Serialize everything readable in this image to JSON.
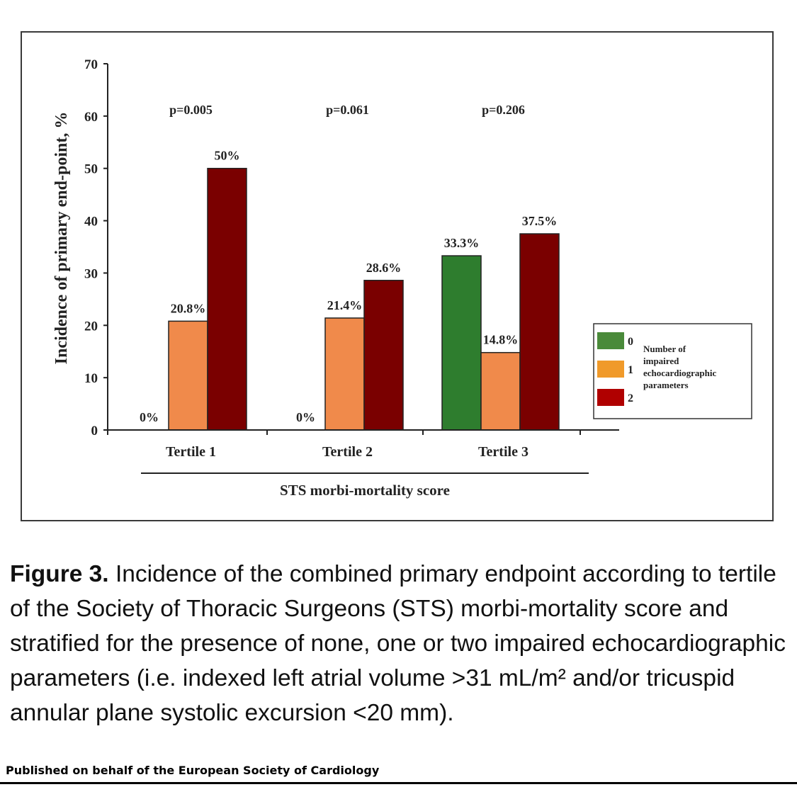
{
  "chart_data": {
    "type": "bar",
    "ylabel": "Incidence of primary end-point, %",
    "xlabel": "STS morbi-mortality score",
    "ylim": [
      0,
      70
    ],
    "yticks": [
      0,
      10,
      20,
      30,
      40,
      50,
      60,
      70
    ],
    "categories": [
      "Tertile 1",
      "Tertile 2",
      "Tertile 3"
    ],
    "p_values": [
      "p=0.005",
      "p=0.061",
      "p=0.206"
    ],
    "series": [
      {
        "name": "0",
        "color": "#2e7d2e",
        "values": [
          0,
          0,
          33.3
        ],
        "labels": [
          "0%",
          "0%",
          "33.3%"
        ]
      },
      {
        "name": "1",
        "color": "#f08a4b",
        "values": [
          20.8,
          21.4,
          14.8
        ],
        "labels": [
          "20.8%",
          "21.4%",
          "14.8%"
        ]
      },
      {
        "name": "2",
        "color": "#7a0000",
        "values": [
          50,
          28.6,
          37.5
        ],
        "labels": [
          "50%",
          "28.6%",
          "37.5%"
        ]
      }
    ],
    "legend": {
      "position": "right",
      "title_lines": [
        "Number of",
        "impaired",
        "echocardiographic",
        "parameters"
      ],
      "swatch_colors": [
        "#4a8a3a",
        "#f09a2a",
        "#b00000"
      ]
    }
  },
  "caption": {
    "lead": "Figure 3.",
    "text": "Incidence of the combined primary endpoint according to tertile of the Society of Thoracic Surgeons (STS) morbi-mortality score and stratified for the presence of none, one or two impaired echocardiographic parameters (i.e. indexed left atrial volume >31 mL/m² and/or tricuspid annular plane systolic excursion <20 mm)."
  },
  "footer": "Published on behalf of the European Society of Cardiology"
}
